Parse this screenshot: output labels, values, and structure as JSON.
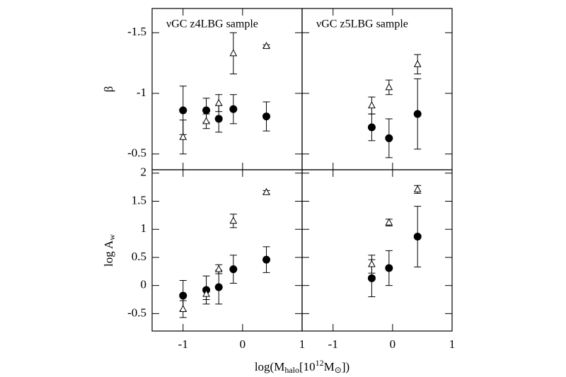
{
  "xlabel": [
    "log(M",
    "halo",
    "[10",
    "12",
    "M",
    "⊙",
    "])"
  ],
  "chart_data": [
    {
      "type": "errorbar",
      "title": "νGC z4LBG sample",
      "ylabel": [
        "β"
      ],
      "xlim": [
        -1.52,
        1
      ],
      "xticks": [
        -1,
        0,
        1
      ],
      "ylim": [
        -0.37,
        -1.7
      ],
      "yticks": [
        -1.5,
        -1,
        -0.5
      ],
      "series": [
        {
          "marker": "circle",
          "color": "#000000",
          "x": [
            -1.0,
            -0.61,
            -0.4,
            -0.155,
            0.4
          ],
          "values": [
            -0.86,
            -0.86,
            -0.79,
            -0.87,
            -0.81
          ],
          "errors": [
            0.2,
            0.1,
            0.11,
            0.12,
            0.12
          ]
        },
        {
          "marker": "triangle",
          "color": "#000000",
          "x": [
            -1.0,
            -0.61,
            -0.4,
            -0.155,
            0.4
          ],
          "values": [
            -0.64,
            -0.77,
            -0.92,
            -1.33,
            -1.39
          ],
          "errors": [
            0.14,
            0.06,
            0.07,
            0.17,
            0.01
          ]
        }
      ]
    },
    {
      "type": "errorbar",
      "title": "νGC z5LBG sample",
      "xlim": [
        -1.52,
        1
      ],
      "xticks": [
        -1,
        0,
        1
      ],
      "ylim": [
        -0.37,
        -1.7
      ],
      "yticks": [
        -1.5,
        -1,
        -0.5
      ],
      "series": [
        {
          "marker": "circle",
          "color": "#000000",
          "x": [
            -0.35,
            -0.06,
            0.42
          ],
          "values": [
            -0.72,
            -0.63,
            -0.83
          ],
          "errors": [
            0.11,
            0.16,
            0.29
          ]
        },
        {
          "marker": "triangle",
          "color": "#000000",
          "x": [
            -0.35,
            -0.06,
            0.42
          ],
          "values": [
            -0.9,
            -1.05,
            -1.24
          ],
          "errors": [
            0.07,
            0.06,
            0.08
          ]
        }
      ]
    },
    {
      "type": "errorbar",
      "ylabel": [
        "log A",
        "w"
      ],
      "xlim": [
        -1.52,
        1
      ],
      "xticks": [
        -1,
        0,
        1
      ],
      "ylim": [
        -0.81,
        2.06
      ],
      "yticks": [
        2,
        1.5,
        1,
        0.5,
        0,
        -0.5
      ],
      "series": [
        {
          "marker": "circle",
          "color": "#000000",
          "x": [
            -1.0,
            -0.61,
            -0.4,
            -0.155,
            0.4
          ],
          "values": [
            -0.18,
            -0.08,
            -0.03,
            0.29,
            0.46
          ],
          "errors": [
            0.27,
            0.25,
            0.3,
            0.25,
            0.23
          ]
        },
        {
          "marker": "triangle",
          "color": "#000000",
          "x": [
            -1.0,
            -0.61,
            -0.4,
            -0.155,
            0.4
          ],
          "values": [
            -0.42,
            -0.15,
            0.29,
            1.15,
            1.66
          ],
          "errors": [
            0.15,
            0.1,
            0.08,
            0.12,
            0.03
          ]
        }
      ]
    },
    {
      "type": "errorbar",
      "xlim": [
        -1.52,
        1
      ],
      "xticks": [
        -1,
        0,
        1
      ],
      "ylim": [
        -0.81,
        2.06
      ],
      "yticks": [
        2,
        1.5,
        1,
        0.5,
        0,
        -0.5
      ],
      "series": [
        {
          "marker": "circle",
          "color": "#000000",
          "x": [
            -0.35,
            -0.06,
            0.42
          ],
          "values": [
            0.13,
            0.31,
            0.87
          ],
          "errors": [
            0.33,
            0.31,
            0.54
          ]
        },
        {
          "marker": "triangle",
          "color": "#000000",
          "x": [
            -0.35,
            -0.06,
            0.42
          ],
          "values": [
            0.38,
            1.12,
            1.71
          ],
          "errors": [
            0.16,
            0.06,
            0.07
          ]
        }
      ]
    }
  ]
}
